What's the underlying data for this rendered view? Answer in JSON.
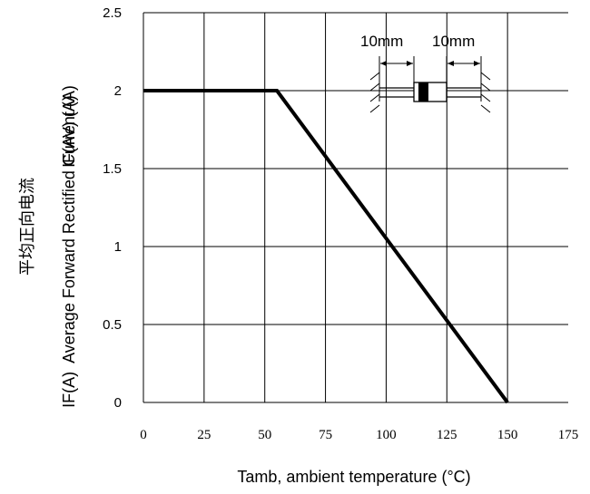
{
  "chart_data": {
    "type": "line",
    "xlabel": "Tamb, ambient temperature (°C)",
    "ylabel_zh": "平均正向电流",
    "ylabel_symbol": "IF(AV) (A)",
    "ylabel": "IF(A)  Average Forward Rectified Current (A)",
    "xlim": [
      0,
      175
    ],
    "ylim": [
      0,
      2.5
    ],
    "x_ticks": [
      "0",
      "25",
      "50",
      "75",
      "100",
      "125",
      "150",
      "175"
    ],
    "y_ticks": [
      "0",
      "0.5",
      "1",
      "1.5",
      "2",
      "2.5"
    ],
    "grid": true,
    "series": [
      {
        "x": [
          0,
          55,
          150
        ],
        "y": [
          2,
          2,
          0
        ]
      }
    ],
    "inset": {
      "left_label": "10mm",
      "right_label": "10mm"
    }
  }
}
